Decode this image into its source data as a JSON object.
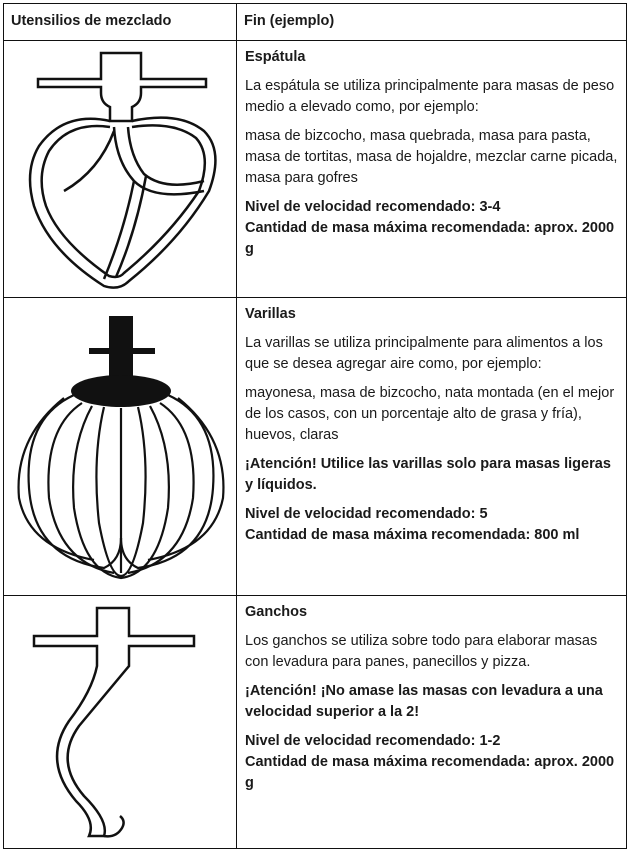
{
  "header": [
    "Utensilios de mezclado",
    "Fin (ejemplo)"
  ],
  "rows": [
    {
      "title": "Espátula",
      "description": "La espátula se utiliza principalmente para masas de peso medio a elevado como, por ejemplo:",
      "examples": "masa de bizcocho, masa quebrada, masa para pasta, masa de tortitas, masa de hojaldre, mezclar carne picada, masa para gofres",
      "speed": "Nivel de velocidad recomendado: 3-4",
      "capacity": "Cantidad de masa máxima recomendada: aprox. 2000 g"
    },
    {
      "title": "Varillas",
      "description": "La varillas se utiliza principalmente para alimentos a los que se desea agregar aire como, por ejemplo:",
      "examples": "mayonesa, masa de bizcocho, nata montada (en el mejor de los casos, con un porcentaje alto de grasa y fría), huevos, claras",
      "warning": "¡Atención! Utilice las varillas solo para masas ligeras y líquidos.",
      "speed": "Nivel de velocidad recomendado: 5",
      "capacity": "Cantidad de masa máxima recomendada: 800 ml"
    },
    {
      "title": "Ganchos",
      "description": "Los ganchos se utiliza sobre todo para elaborar masas con levadura para panes, panecillos y pizza.",
      "warning": "¡Atención! ¡No amase las masas con levadura a una velocidad superior a la 2!",
      "speed": "Nivel de velocidad recomendado: 1-2",
      "capacity": "Cantidad de masa máxima recomendada: aprox. 2000 g"
    }
  ]
}
